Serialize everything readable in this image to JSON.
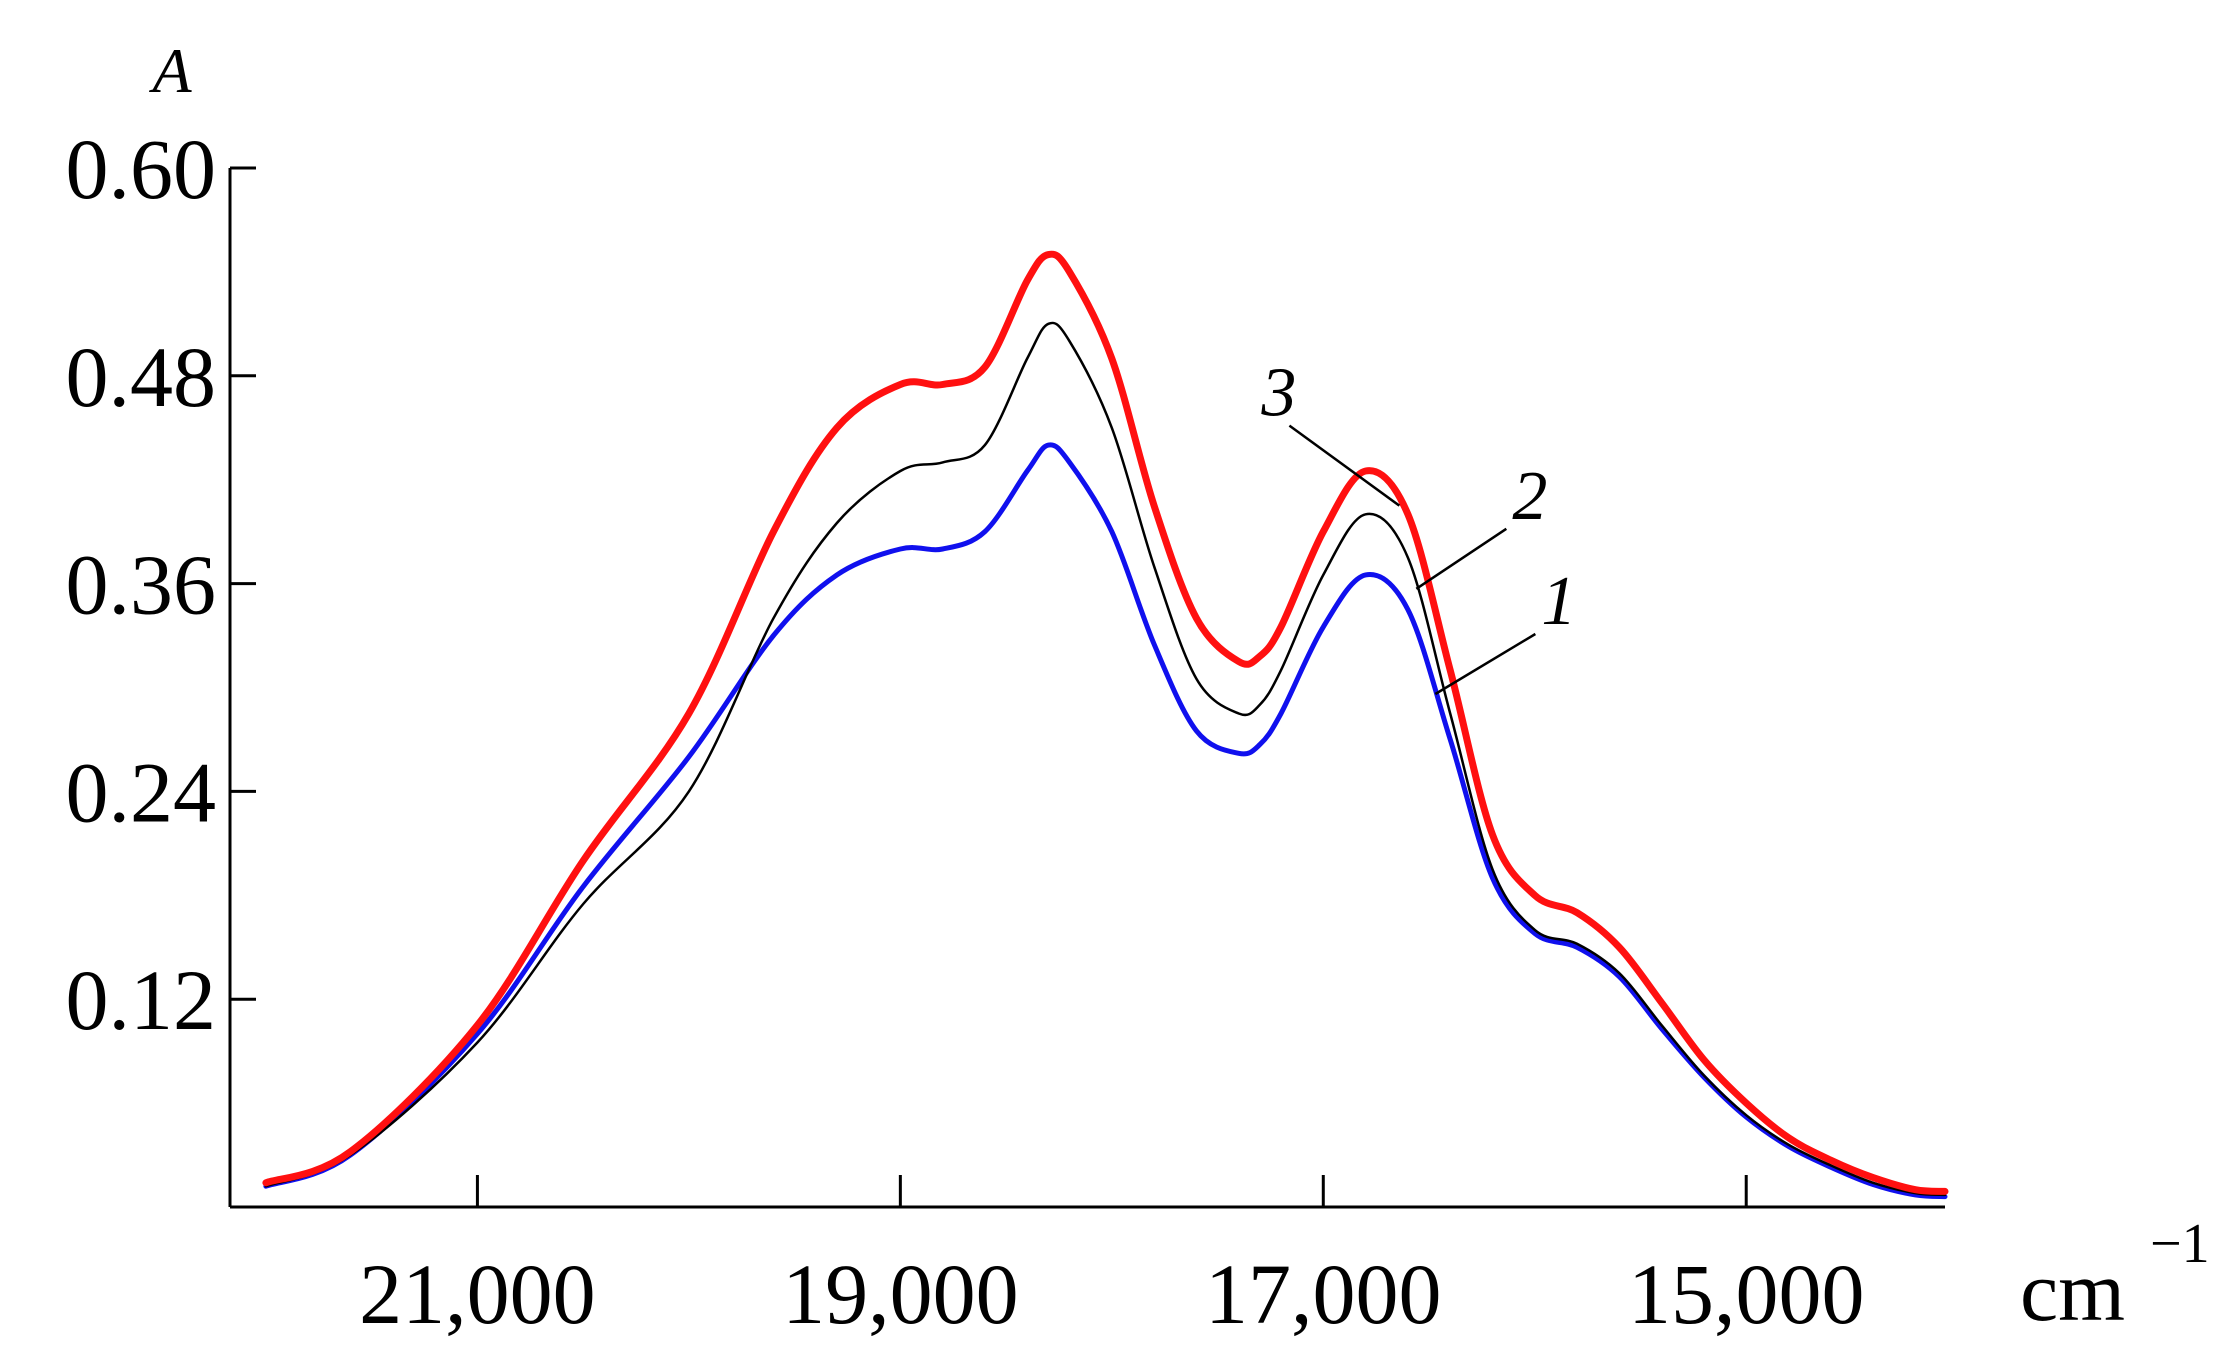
{
  "chart_data": {
    "type": "line",
    "title": "",
    "ylabel": "A",
    "xlabel": "cm",
    "xlabel_superscript": "−1",
    "x_reversed": true,
    "xlim": [
      22170,
      14060
    ],
    "ylim": [
      0,
      0.6
    ],
    "grid": false,
    "x_ticks": [
      21000,
      19000,
      17000,
      15000
    ],
    "x_tick_labels": [
      "21,000",
      "19,000",
      "17,000",
      "15,000"
    ],
    "y_ticks": [
      0.12,
      0.24,
      0.36,
      0.48,
      0.6
    ],
    "y_tick_labels": [
      "0.12",
      "0.24",
      "0.36",
      "0.48",
      "0.60"
    ],
    "series": [
      {
        "name": "1",
        "color": "#1010ee",
        "x": [
          22000,
          21600,
          21000,
          20500,
          20000,
          19600,
          19300,
          19000,
          18800,
          18600,
          18400,
          18300,
          18200,
          18000,
          17800,
          17600,
          17400,
          17300,
          17200,
          17000,
          16800,
          16600,
          16400,
          16200,
          16000,
          15800,
          15600,
          15400,
          15200,
          15000,
          14800,
          14600,
          14400,
          14200,
          14060
        ],
        "y": [
          0.012,
          0.03,
          0.1,
          0.185,
          0.26,
          0.33,
          0.365,
          0.38,
          0.38,
          0.39,
          0.425,
          0.44,
          0.43,
          0.39,
          0.325,
          0.275,
          0.262,
          0.267,
          0.285,
          0.335,
          0.365,
          0.345,
          0.27,
          0.19,
          0.158,
          0.15,
          0.133,
          0.103,
          0.075,
          0.052,
          0.035,
          0.023,
          0.013,
          0.007,
          0.006
        ]
      },
      {
        "name": "2",
        "color": "#000000",
        "x": [
          22000,
          21600,
          21000,
          20500,
          20000,
          19600,
          19300,
          19000,
          18800,
          18600,
          18400,
          18300,
          18200,
          18000,
          17800,
          17600,
          17400,
          17300,
          17200,
          17000,
          16800,
          16600,
          16400,
          16200,
          16000,
          15800,
          15600,
          15400,
          15200,
          15000,
          14800,
          14600,
          14400,
          14200,
          14060
        ],
        "y": [
          0.012,
          0.03,
          0.095,
          0.175,
          0.24,
          0.34,
          0.395,
          0.425,
          0.43,
          0.44,
          0.49,
          0.51,
          0.5,
          0.45,
          0.37,
          0.305,
          0.285,
          0.29,
          0.31,
          0.365,
          0.4,
          0.375,
          0.285,
          0.195,
          0.16,
          0.152,
          0.135,
          0.105,
          0.076,
          0.053,
          0.036,
          0.024,
          0.014,
          0.008,
          0.007
        ]
      },
      {
        "name": "3",
        "color": "#ff1010",
        "x": [
          22000,
          21600,
          21000,
          20500,
          20000,
          19600,
          19300,
          19000,
          18800,
          18600,
          18400,
          18300,
          18200,
          18000,
          17800,
          17600,
          17400,
          17300,
          17200,
          17000,
          16800,
          16600,
          16400,
          16200,
          16000,
          15800,
          15600,
          15400,
          15200,
          15000,
          14800,
          14600,
          14400,
          14200,
          14060
        ],
        "y": [
          0.014,
          0.032,
          0.105,
          0.2,
          0.285,
          0.39,
          0.45,
          0.475,
          0.475,
          0.485,
          0.535,
          0.55,
          0.54,
          0.49,
          0.405,
          0.34,
          0.315,
          0.318,
          0.335,
          0.39,
          0.425,
          0.4,
          0.31,
          0.215,
          0.18,
          0.17,
          0.15,
          0.118,
          0.085,
          0.06,
          0.04,
          0.027,
          0.017,
          0.01,
          0.009
        ]
      }
    ],
    "annotations": [
      {
        "text": "3",
        "series": "3",
        "point_x": 16640
      },
      {
        "text": "2",
        "series": "2",
        "point_x": 16560
      },
      {
        "text": "1",
        "series": "1",
        "point_x": 16470
      }
    ]
  }
}
